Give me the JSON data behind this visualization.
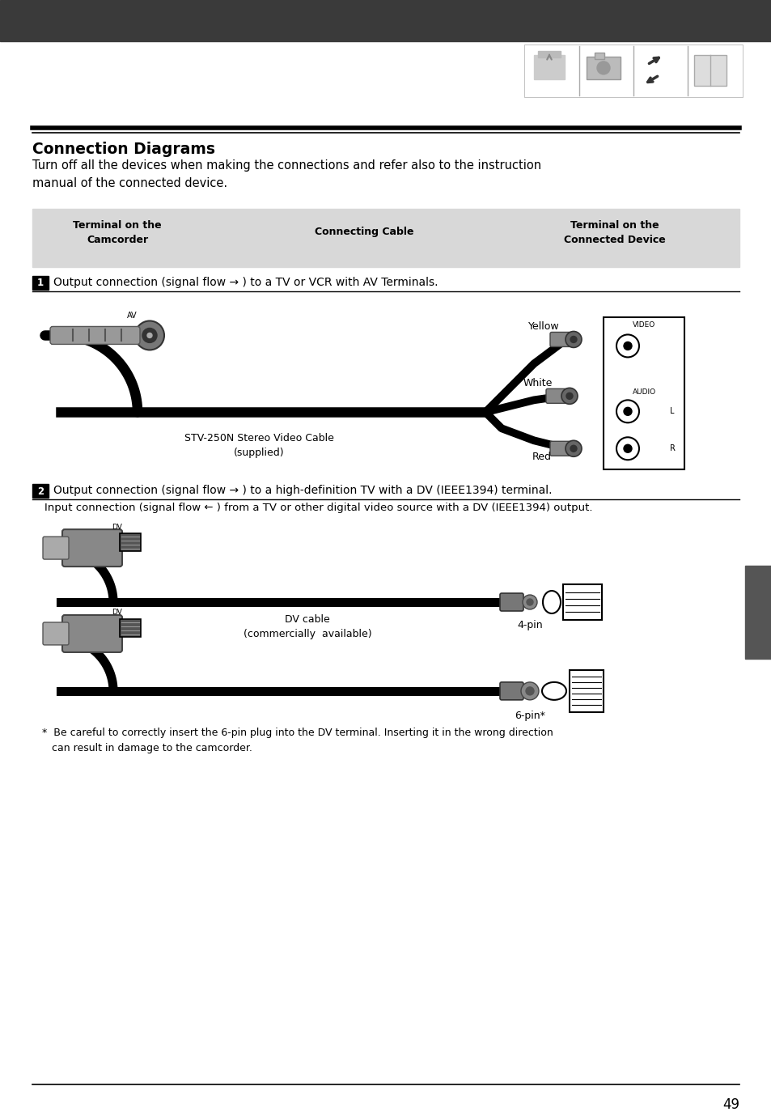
{
  "bg_color": "#ffffff",
  "header_bar_color": "#3a3a3a",
  "table_bg_color": "#d8d8d8",
  "title": "Connection Diagrams",
  "intro_text": "Turn off all the devices when making the connections and refer also to the instruction\nmanual of the connected device.",
  "col1_text": "Terminal on the\nCamcorder",
  "col2_text": "Connecting Cable",
  "col3_text": "Terminal on the\nConnected Device",
  "row1_text": "Output connection (signal flow → ) to a TV or VCR with AV Terminals.",
  "row2_text": "Output connection (signal flow → ) to a high-definition TV with a DV (IEEE1394) terminal.",
  "row2_subtext": "Input connection (signal flow ← ) from a TV or other digital video source with a DV (IEEE1394) output.",
  "cable1_label": "STV-250N Stereo Video Cable\n(supplied)",
  "cable2_label": "DV cable\n(commercially  available)",
  "yellow_label": "Yellow",
  "white_label": "White",
  "red_label": "Red",
  "video_label": "VIDEO",
  "audio_label": "AUDIO",
  "L_label": "L",
  "R_label": "R",
  "av_label": "AV",
  "dv_label": "DV",
  "pin4_label": "4-pin",
  "pin6_label": "6-pin*",
  "footnote": "*  Be careful to correctly insert the 6-pin plug into the DV terminal. Inserting it in the wrong direction\n   can result in damage to the camcorder.",
  "page_number": "49",
  "separator_color": "#000000",
  "right_tab_color": "#555555"
}
